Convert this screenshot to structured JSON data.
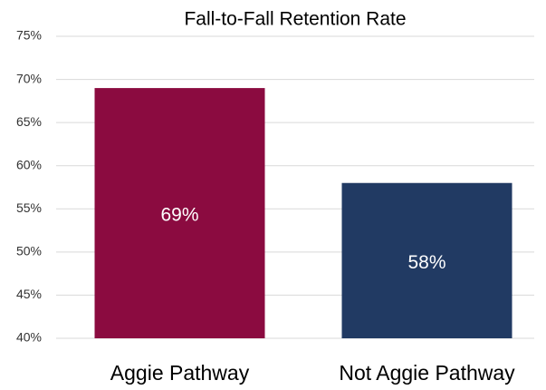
{
  "chart_data": {
    "type": "bar",
    "title": "Fall-to-Fall Retention Rate",
    "categories": [
      "Aggie Pathway",
      "Not Aggie Pathway"
    ],
    "values": [
      69,
      58
    ],
    "value_labels": [
      "69%",
      "58%"
    ],
    "colors": [
      "#8b0b40",
      "#213a63"
    ],
    "ylim": [
      40,
      75
    ],
    "yticks": [
      {
        "value": 40,
        "label": "40%"
      },
      {
        "value": 45,
        "label": "45%"
      },
      {
        "value": 50,
        "label": "50%"
      },
      {
        "value": 55,
        "label": "55%"
      },
      {
        "value": 60,
        "label": "60%"
      },
      {
        "value": 65,
        "label": "65%"
      },
      {
        "value": 70,
        "label": "70%"
      },
      {
        "value": 75,
        "label": "75%"
      }
    ],
    "grid": true
  }
}
